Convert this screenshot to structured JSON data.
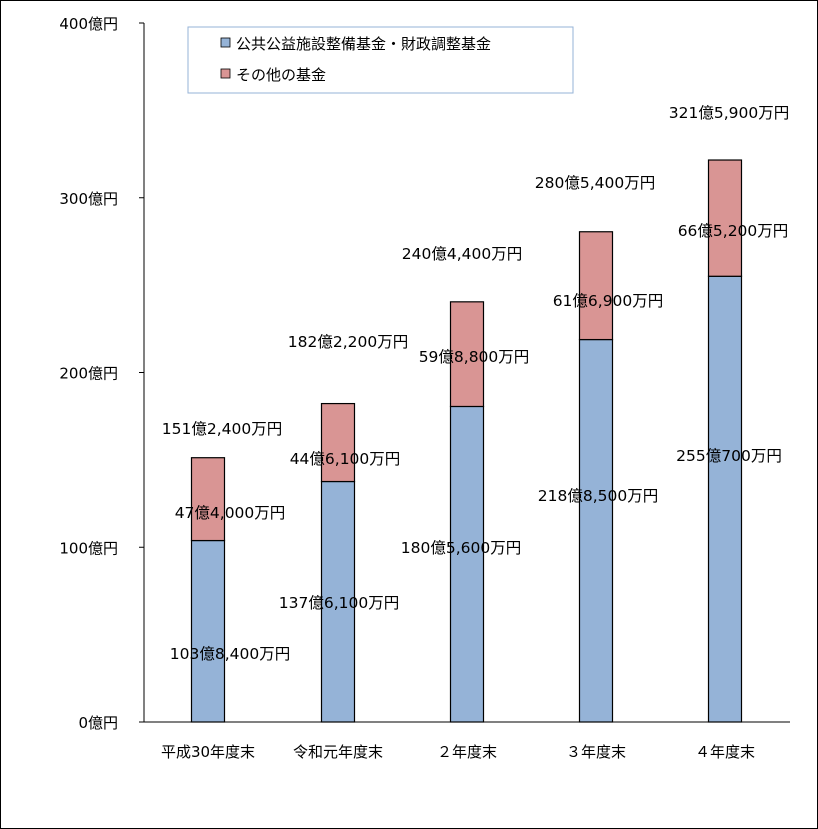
{
  "chart_data": {
    "type": "bar",
    "stacked": true,
    "categories": [
      "平成30年度末",
      "令和元年度末",
      "２年度末",
      "３年度末",
      "４年度末"
    ],
    "series": [
      {
        "name": "公共公益施設整備基金・財政調整基金",
        "color": "#95B3D7",
        "values": [
          103.84,
          137.61,
          180.56,
          218.85,
          255.07
        ],
        "labels": [
          "103億8,400万円",
          "137億6,100万円",
          "180億5,600万円",
          "218億8,500万円",
          "255億700万円"
        ]
      },
      {
        "name": "その他の基金",
        "color": "#D99594",
        "values": [
          47.4,
          44.61,
          59.88,
          61.69,
          66.52
        ],
        "labels": [
          "47億4,000万円",
          "44億6,100万円",
          "59億8,800万円",
          "61億6,900万円",
          "66億5,200万円"
        ]
      }
    ],
    "totals": [
      151.24,
      182.22,
      240.44,
      280.54,
      321.59
    ],
    "total_labels": [
      "151億2,400万円",
      "182億2,200万円",
      "240億4,400万円",
      "280億5,400万円",
      "321億5,900万円"
    ],
    "ylim": [
      0,
      400
    ],
    "yticks": [
      0,
      100,
      200,
      300,
      400
    ],
    "ytick_labels": [
      "0億円",
      "100億円",
      "200億円",
      "300億円",
      "400億円"
    ],
    "legend_position": "top",
    "grid": false
  }
}
